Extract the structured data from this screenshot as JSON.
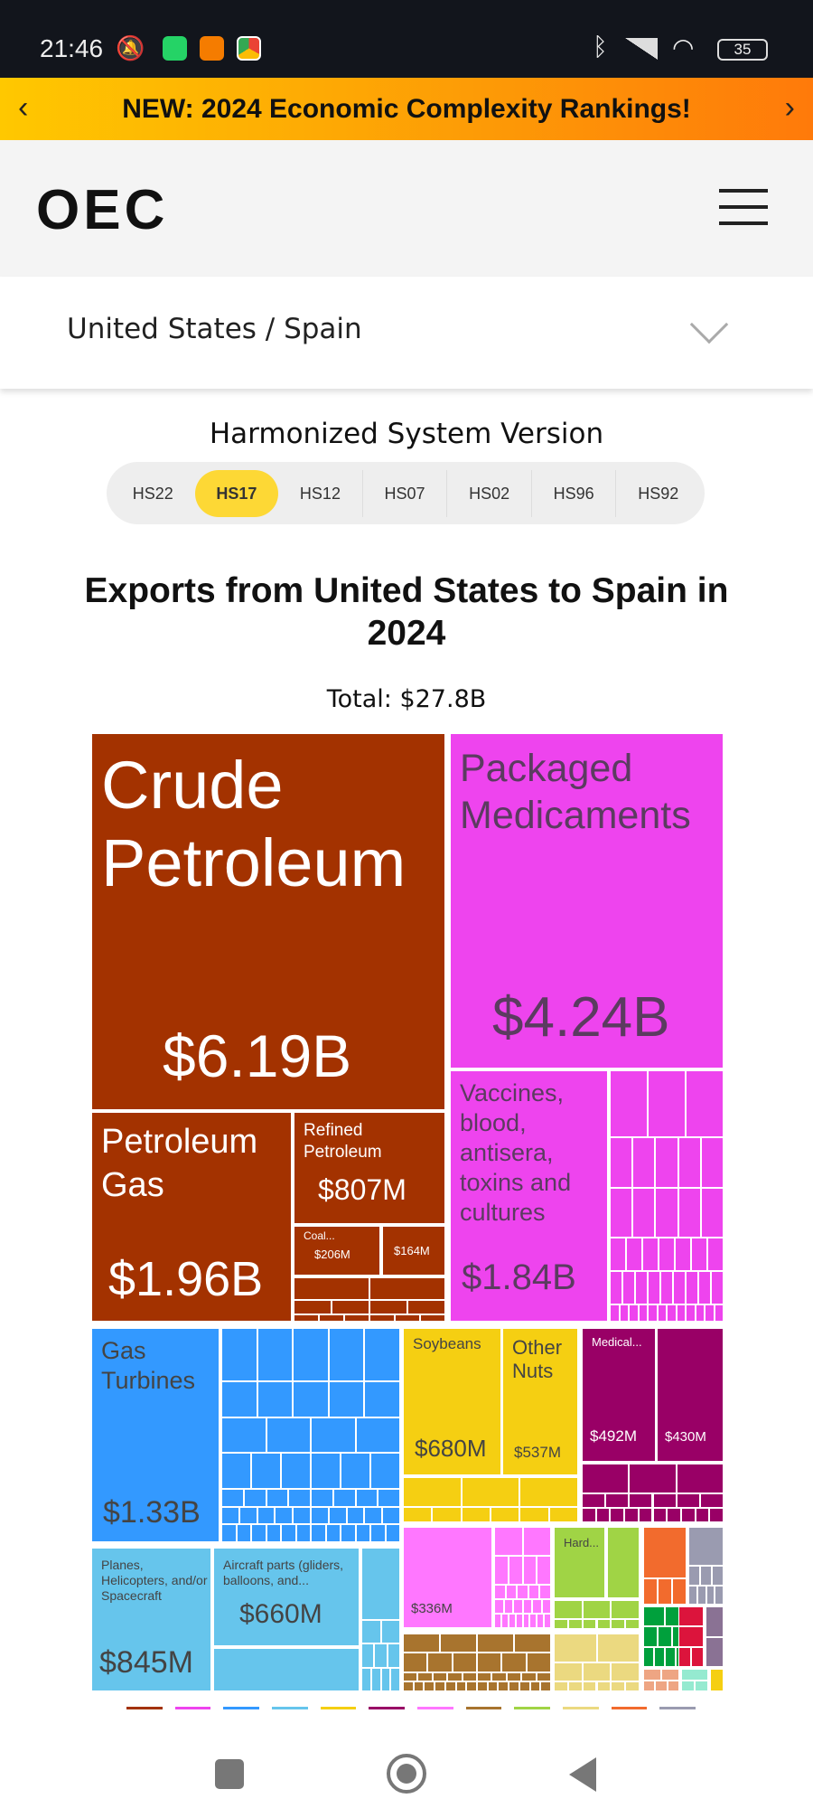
{
  "status_bar": {
    "time": "21:46",
    "battery": "35"
  },
  "banner": {
    "text": "NEW: 2024 Economic Complexity Rankings!",
    "prev": "‹",
    "next": "›"
  },
  "header": {
    "logo": "OEC"
  },
  "selector": {
    "value": "United States / Spain"
  },
  "hs": {
    "label": "Harmonized System Version",
    "options": [
      "HS22",
      "HS17",
      "HS12",
      "HS07",
      "HS02",
      "HS96",
      "HS92"
    ],
    "selected": "HS17"
  },
  "chart_data": {
    "type": "treemap",
    "title": "Exports from United States to Spain in 2024",
    "total": "Total: $27.8B",
    "tiles": [
      {
        "name": "Crude Petroleum",
        "value": "$6.19B",
        "color": "#a33200"
      },
      {
        "name": "Packaged Medicaments",
        "value": "$4.24B",
        "color": "#ee44ee"
      },
      {
        "name": "Petroleum Gas",
        "value": "$1.96B",
        "color": "#a33200"
      },
      {
        "name": "Refined Petroleum",
        "value": "$807M",
        "color": "#a33200"
      },
      {
        "name": "Coal...",
        "value": "$206M",
        "color": "#a33200"
      },
      {
        "name": "",
        "value": "$164M",
        "color": "#a33200"
      },
      {
        "name": "Vaccines, blood, antisera, toxins and cultures",
        "value": "$1.84B",
        "color": "#ee44ee"
      },
      {
        "name": "Gas Turbines",
        "value": "$1.33B",
        "color": "#3399ff"
      },
      {
        "name": "Planes, Helicopters, and/or Spacecraft",
        "value": "$845M",
        "color": "#66c5ec"
      },
      {
        "name": "Aircraft parts (gliders, balloons, and...",
        "value": "$660M",
        "color": "#66c5ec"
      },
      {
        "name": "Soybeans",
        "value": "$680M",
        "color": "#f5cf12"
      },
      {
        "name": "Other Nuts",
        "value": "$537M",
        "color": "#f5cf12"
      },
      {
        "name": "Medical...",
        "value": "$492M",
        "color": "#990066"
      },
      {
        "name": "",
        "value": "$430M",
        "color": "#990066"
      },
      {
        "name": "",
        "value": "$336M",
        "color": "#ff77ff"
      },
      {
        "name": "Hard...",
        "value": "",
        "color": "#a0d445"
      }
    ],
    "legend_colors": [
      "#a33200",
      "#ee44ee",
      "#3399ff",
      "#66c5ec",
      "#f5cf12",
      "#990066",
      "#ff77ff",
      "#a8742e",
      "#a0d445",
      "#ebd980",
      "#f26b2d",
      "#9a9bb0"
    ]
  }
}
